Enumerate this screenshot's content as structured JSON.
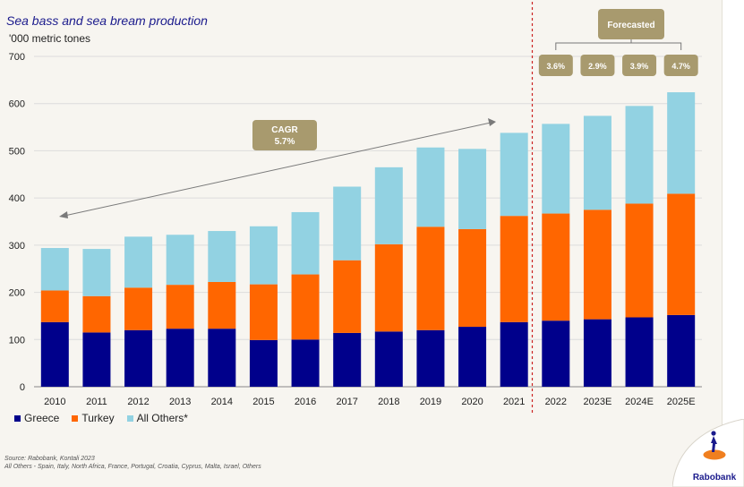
{
  "title": "Sea bass and sea bream production",
  "subtitle": "'000 metric tones",
  "chart_data": {
    "type": "bar",
    "stacked": true,
    "title": "Sea bass and sea bream production",
    "ylabel": "'000 metric tones",
    "xlabel": "",
    "ylim": [
      0,
      700
    ],
    "yticks": [
      "0",
      "100",
      "200",
      "300",
      "400",
      "500",
      "600",
      "700"
    ],
    "grid": true,
    "categories": [
      "2010",
      "2011",
      "2012",
      "2013",
      "2014",
      "2015",
      "2016",
      "2017",
      "2018",
      "2019",
      "2020",
      "2021",
      "2022",
      "2023E",
      "2024E",
      "2025E"
    ],
    "series": [
      {
        "name": "Greece",
        "color": "#00008b",
        "values": [
          137,
          115,
          120,
          123,
          123,
          99,
          100,
          114,
          117,
          120,
          127,
          137,
          140,
          143,
          147,
          152
        ]
      },
      {
        "name": "Turkey",
        "color": "#ff6600",
        "values": [
          67,
          77,
          90,
          93,
          99,
          118,
          138,
          154,
          185,
          219,
          207,
          225,
          227,
          232,
          241,
          257
        ]
      },
      {
        "name": "All Others*",
        "color": "#92d2e2",
        "values": [
          90,
          100,
          108,
          106,
          108,
          123,
          132,
          156,
          163,
          168,
          170,
          176,
          190,
          199,
          207,
          215
        ]
      }
    ],
    "legend_position": "bottom-left",
    "annotations": {
      "cagr_label": "CAGR",
      "cagr_value": "5.7%",
      "forecast_label": "Forecasted",
      "forecast_start": "2022",
      "growth_rates": [
        "3.6%",
        "2.9%",
        "3.9%",
        "4.7%"
      ]
    }
  },
  "source_lines": [
    "Source: Rabobank, Kontali 2023",
    "All Others - Spain, Italy, North Africa, France, Portugal, Croatia, Cyprus, Malta, Israel, Others"
  ],
  "brand": "Rabobank",
  "colors": {
    "greece": "#00008b",
    "turkey": "#ff6600",
    "others": "#92d2e2",
    "badge": "#a89a6e",
    "divider": "#cc2222"
  }
}
